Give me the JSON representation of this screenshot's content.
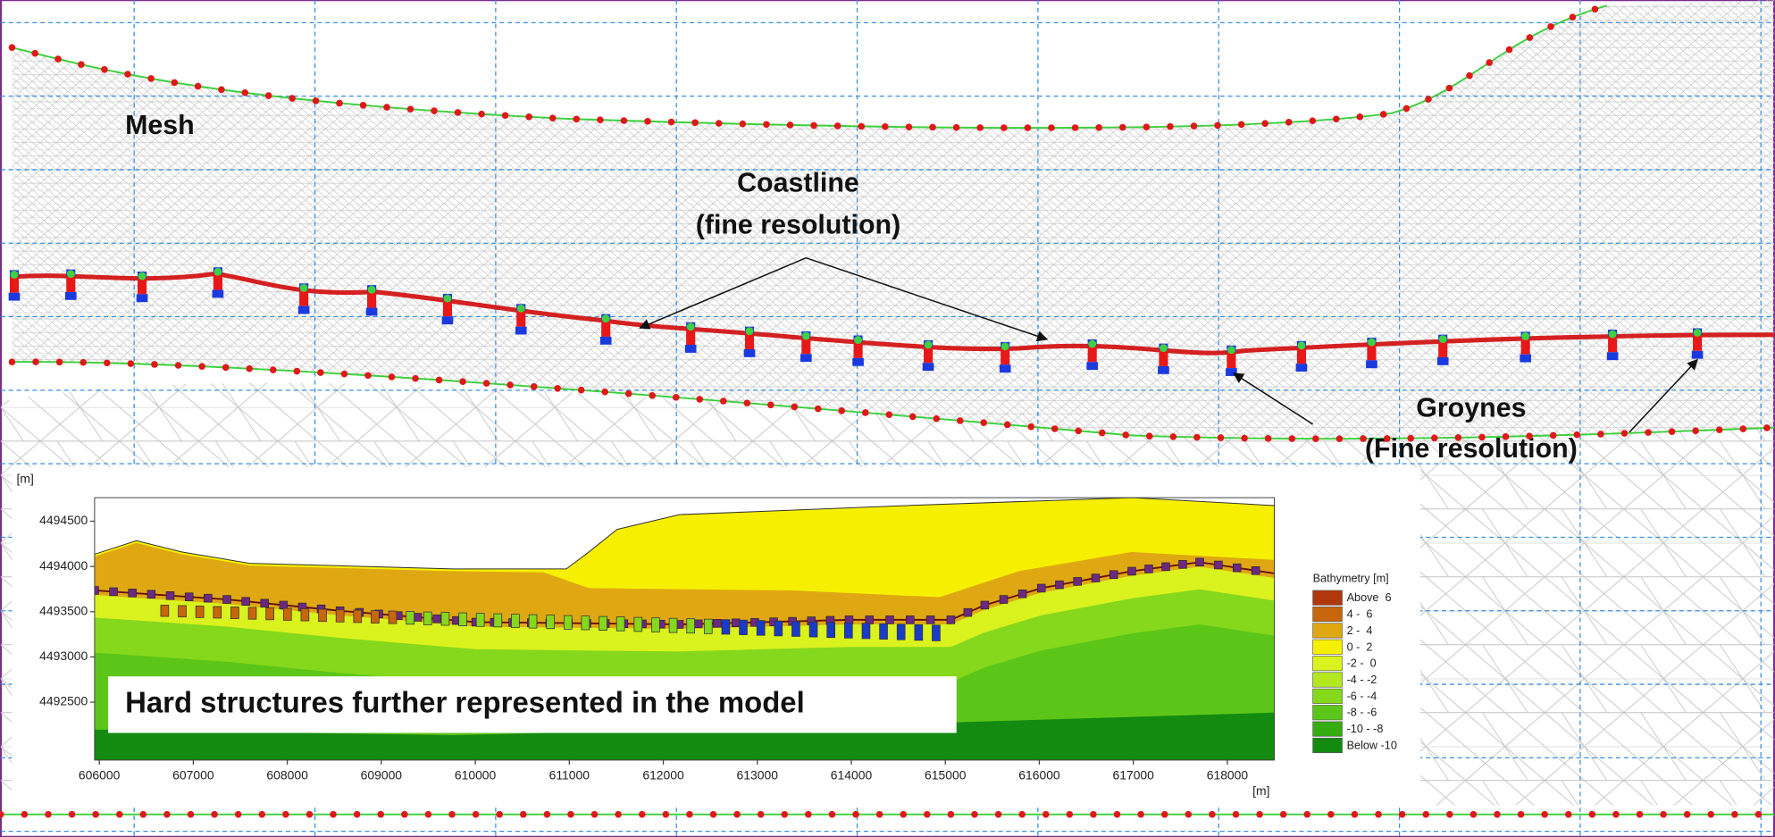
{
  "annotations": {
    "mesh": "Mesh",
    "coastline": [
      "Coastline",
      "(fine resolution)"
    ],
    "groynes": [
      "Groynes",
      "(Fine resolution)"
    ]
  },
  "chart_data": {
    "type": "contour",
    "y_label": "[m]",
    "x_label": "[m]",
    "xlim": [
      605950,
      618500
    ],
    "ylim": [
      4491860,
      4494760
    ],
    "xticks": [
      606000,
      607000,
      608000,
      609000,
      610000,
      611000,
      612000,
      613000,
      614000,
      615000,
      616000,
      617000,
      618000
    ],
    "yticks": [
      4492500,
      4493000,
      4493500,
      4494000,
      4494500
    ],
    "legend": {
      "title": "Bathymetry [m]",
      "items": [
        {
          "label": "Above  6",
          "color": "#b0380c"
        },
        {
          "label": "4 -  6",
          "color": "#c8660c"
        },
        {
          "label": "2 -  4",
          "color": "#dfa812"
        },
        {
          "label": "0 -  2",
          "color": "#f6f000"
        },
        {
          "label": "-2 -  0",
          "color": "#daf21e"
        },
        {
          "label": "-4 - -2",
          "color": "#b4e81e"
        },
        {
          "label": "-6 - -4",
          "color": "#86d81c"
        },
        {
          "label": "-8 - -6",
          "color": "#5cc618"
        },
        {
          "label": "-10 - -8",
          "color": "#34ac12"
        },
        {
          "label": "Below -10",
          "color": "#138a10"
        }
      ]
    },
    "caption": "Hard structures further represented in the model"
  }
}
